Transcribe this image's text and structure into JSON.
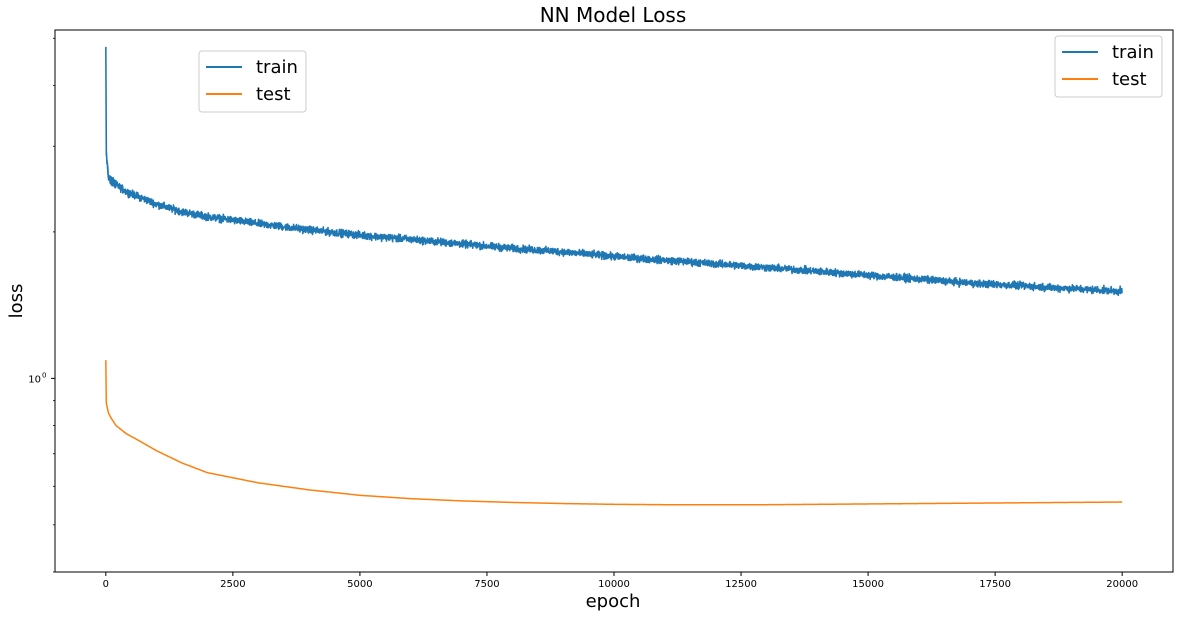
{
  "chart_data": {
    "type": "line",
    "title": "NN Model Loss",
    "xlabel": "epoch",
    "ylabel": "loss",
    "xlim": [
      -1000,
      21000
    ],
    "ylim": [
      0.4,
      5.2
    ],
    "yscale": "log",
    "grid": false,
    "x_ticks": [
      0,
      2500,
      5000,
      7500,
      10000,
      12500,
      15000,
      17500,
      20000
    ],
    "x_tick_labels": [
      "0",
      "2500",
      "5000",
      "7500",
      "10000",
      "12500",
      "15000",
      "17500",
      "20000"
    ],
    "y_tick_label": {
      "base": "10",
      "exponent": "0",
      "value": 1
    },
    "y_minor_ticks": [
      0.4,
      0.5,
      0.6,
      0.7,
      0.8,
      0.9,
      2,
      3,
      4,
      5
    ],
    "legend_entries": [
      "train",
      "test"
    ],
    "legends": [
      {
        "placement": "upper-left",
        "entries": [
          "train",
          "test"
        ]
      },
      {
        "placement": "top-right",
        "entries": [
          "train",
          "test"
        ]
      }
    ],
    "series": [
      {
        "name": "train",
        "color": "#1f77b4",
        "noise": 0.025,
        "x": [
          0,
          10,
          50,
          100,
          200,
          400,
          700,
          1000,
          1500,
          2000,
          3000,
          4000,
          5000,
          6000,
          7000,
          8000,
          9000,
          10000,
          11000,
          12000,
          13000,
          14000,
          15000,
          16000,
          17000,
          18000,
          19000,
          20000
        ],
        "y": [
          4.8,
          2.9,
          2.6,
          2.55,
          2.5,
          2.42,
          2.35,
          2.28,
          2.2,
          2.15,
          2.08,
          2.02,
          1.97,
          1.93,
          1.89,
          1.85,
          1.82,
          1.78,
          1.75,
          1.72,
          1.69,
          1.66,
          1.63,
          1.6,
          1.57,
          1.55,
          1.53,
          1.51
        ]
      },
      {
        "name": "test",
        "color": "#ff7f0e",
        "noise": 0,
        "x": [
          0,
          10,
          50,
          100,
          200,
          400,
          700,
          1000,
          1500,
          2000,
          3000,
          4000,
          5000,
          6000,
          7000,
          8000,
          9000,
          10000,
          11000,
          12000,
          13000,
          14000,
          15000,
          16000,
          17000,
          18000,
          19000,
          20000
        ],
        "y": [
          1.09,
          0.89,
          0.85,
          0.83,
          0.8,
          0.77,
          0.74,
          0.71,
          0.67,
          0.64,
          0.61,
          0.59,
          0.575,
          0.566,
          0.56,
          0.556,
          0.553,
          0.551,
          0.55,
          0.55,
          0.55,
          0.551,
          0.552,
          0.553,
          0.554,
          0.555,
          0.556,
          0.557
        ]
      }
    ]
  }
}
